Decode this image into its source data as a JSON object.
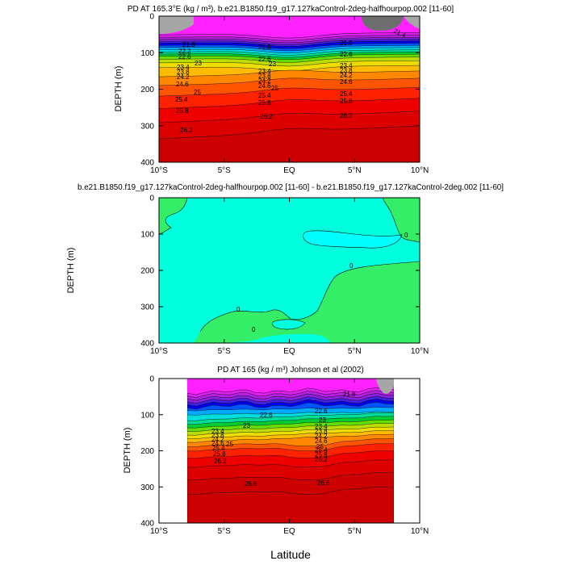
{
  "chart_data": [
    {
      "type": "contour",
      "title": "PD AT 165.3°E (kg / m³), b.e21.B1850.f19_g17.127kaControl-2deg-halfhourpop.002 [11-60]",
      "ylabel": "DEPTH (m)",
      "xlim": [
        -10,
        10
      ],
      "ylim": [
        400,
        0
      ],
      "x_ticks": [
        "10°S",
        "5°S",
        "EQ",
        "5°N",
        "10°N"
      ],
      "y_ticks": [
        "0",
        "100",
        "200",
        "300",
        "400"
      ],
      "missing_color": "#a6a6a6",
      "contour_labels": [
        "21.8",
        "22.2",
        "22.6",
        "23",
        "23.4",
        "23.8",
        "24.2",
        "24.6",
        "25",
        "25.4",
        "25.8",
        "26.2",
        "21.4"
      ]
    },
    {
      "type": "contour",
      "title": "b.e21.B1850.f19_g17.127kaControl-2deg-halfhourpop.002 [11-60] - b.e21.B1850.f19_g17.127kaControl-2deg.002 [11-60]",
      "ylabel": "DEPTH (m)",
      "xlim": [
        -10,
        10
      ],
      "ylim": [
        400,
        0
      ],
      "x_ticks": [
        "10°S",
        "5°S",
        "EQ",
        "5°N",
        "10°N"
      ],
      "y_ticks": [
        "0",
        "100",
        "200",
        "300",
        "400"
      ],
      "contour_labels": [
        "0",
        "0",
        "0",
        "0"
      ]
    },
    {
      "type": "contour",
      "title": "PD AT 165 (kg / m³) Johnson et al (2002)",
      "ylabel": "DEPTH (m)",
      "xlabel": "Latitude",
      "xlim": [
        -10,
        10
      ],
      "ylim": [
        400,
        0
      ],
      "data_xlim": [
        -8,
        8
      ],
      "x_ticks": [
        "10°S",
        "5°S",
        "EQ",
        "5°N",
        "10°N"
      ],
      "y_ticks": [
        "0",
        "100",
        "200",
        "300",
        "400"
      ],
      "contour_labels": [
        "21.8",
        "22.6",
        "23",
        "23.4",
        "23.8",
        "24.2",
        "24.6",
        "25",
        "25.4",
        "25.8",
        "26.2",
        "26.6",
        "22.6",
        "23",
        "23.4",
        "23.8",
        "24.2",
        "24.6",
        "25",
        "25.4",
        "25.8",
        "26.2",
        "26.6"
      ]
    }
  ],
  "colors": {
    "rainbow": [
      "#ff22ff",
      "#dd22ee",
      "#b322dd",
      "#8822dd",
      "#4422dd",
      "#0000ee",
      "#0055ff",
      "#00aaff",
      "#00dddd",
      "#00dd99",
      "#00cc33",
      "#66dd00",
      "#bbdd00",
      "#eedd00",
      "#ffbb00",
      "#ff8800",
      "#ff5500",
      "#ff2200",
      "#ee0000",
      "#dd0000",
      "#cc0000"
    ],
    "diff_cyan": "#00ffdd",
    "diff_aqua": "#00ffff",
    "diff_green": "#33ee66"
  }
}
